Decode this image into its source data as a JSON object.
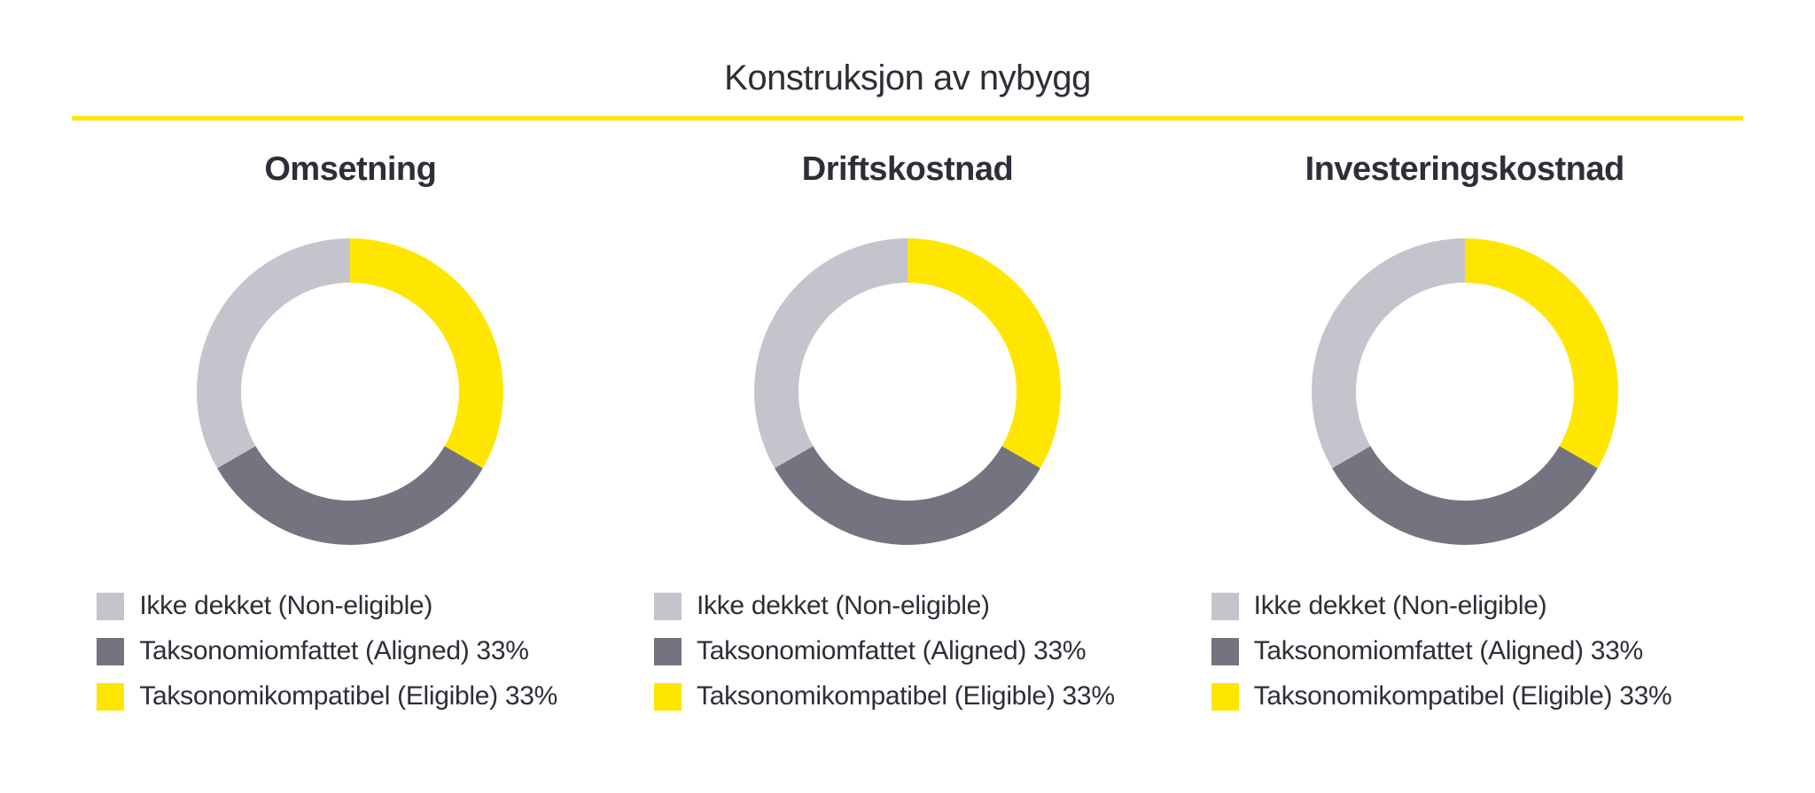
{
  "page": {
    "title": "Konstruksjon av nybygg",
    "accent_color": "#FFE600",
    "text_color": "#2E2E38",
    "background_color": "#FFFFFF"
  },
  "colors": {
    "non_eligible": "#C4C4CD",
    "aligned": "#747480",
    "eligible": "#FFE600"
  },
  "chart_data": [
    {
      "type": "pie",
      "variant": "donut",
      "title": "Omsetning",
      "start_angle_deg": 0,
      "direction": "clockwise",
      "segments": [
        {
          "name": "eligible",
          "value": 33.33,
          "color": "#FFE600"
        },
        {
          "name": "aligned",
          "value": 33.33,
          "color": "#747480"
        },
        {
          "name": "non_eligible",
          "value": 33.34,
          "color": "#C4C4CD"
        }
      ],
      "legend": [
        {
          "label": "Ikke dekket (Non-eligible)",
          "color": "#C4C4CD"
        },
        {
          "label": "Taksonomiomfattet (Aligned) 33%",
          "color": "#747480"
        },
        {
          "label": "Taksonomikompatibel (Eligible) 33%",
          "color": "#FFE600"
        }
      ]
    },
    {
      "type": "pie",
      "variant": "donut",
      "title": "Driftskostnad",
      "start_angle_deg": 0,
      "direction": "clockwise",
      "segments": [
        {
          "name": "eligible",
          "value": 33.33,
          "color": "#FFE600"
        },
        {
          "name": "aligned",
          "value": 33.33,
          "color": "#747480"
        },
        {
          "name": "non_eligible",
          "value": 33.34,
          "color": "#C4C4CD"
        }
      ],
      "legend": [
        {
          "label": "Ikke dekket (Non-eligible)",
          "color": "#C4C4CD"
        },
        {
          "label": "Taksonomiomfattet (Aligned) 33%",
          "color": "#747480"
        },
        {
          "label": "Taksonomikompatibel (Eligible) 33%",
          "color": "#FFE600"
        }
      ]
    },
    {
      "type": "pie",
      "variant": "donut",
      "title": "Investeringskostnad",
      "start_angle_deg": 0,
      "direction": "clockwise",
      "segments": [
        {
          "name": "eligible",
          "value": 33.33,
          "color": "#FFE600"
        },
        {
          "name": "aligned",
          "value": 33.33,
          "color": "#747480"
        },
        {
          "name": "non_eligible",
          "value": 33.34,
          "color": "#C4C4CD"
        }
      ],
      "legend": [
        {
          "label": "Ikke dekket (Non-eligible)",
          "color": "#C4C4CD"
        },
        {
          "label": "Taksonomiomfattet (Aligned) 33%",
          "color": "#747480"
        },
        {
          "label": "Taksonomikompatibel (Eligible) 33%",
          "color": "#FFE600"
        }
      ]
    }
  ]
}
